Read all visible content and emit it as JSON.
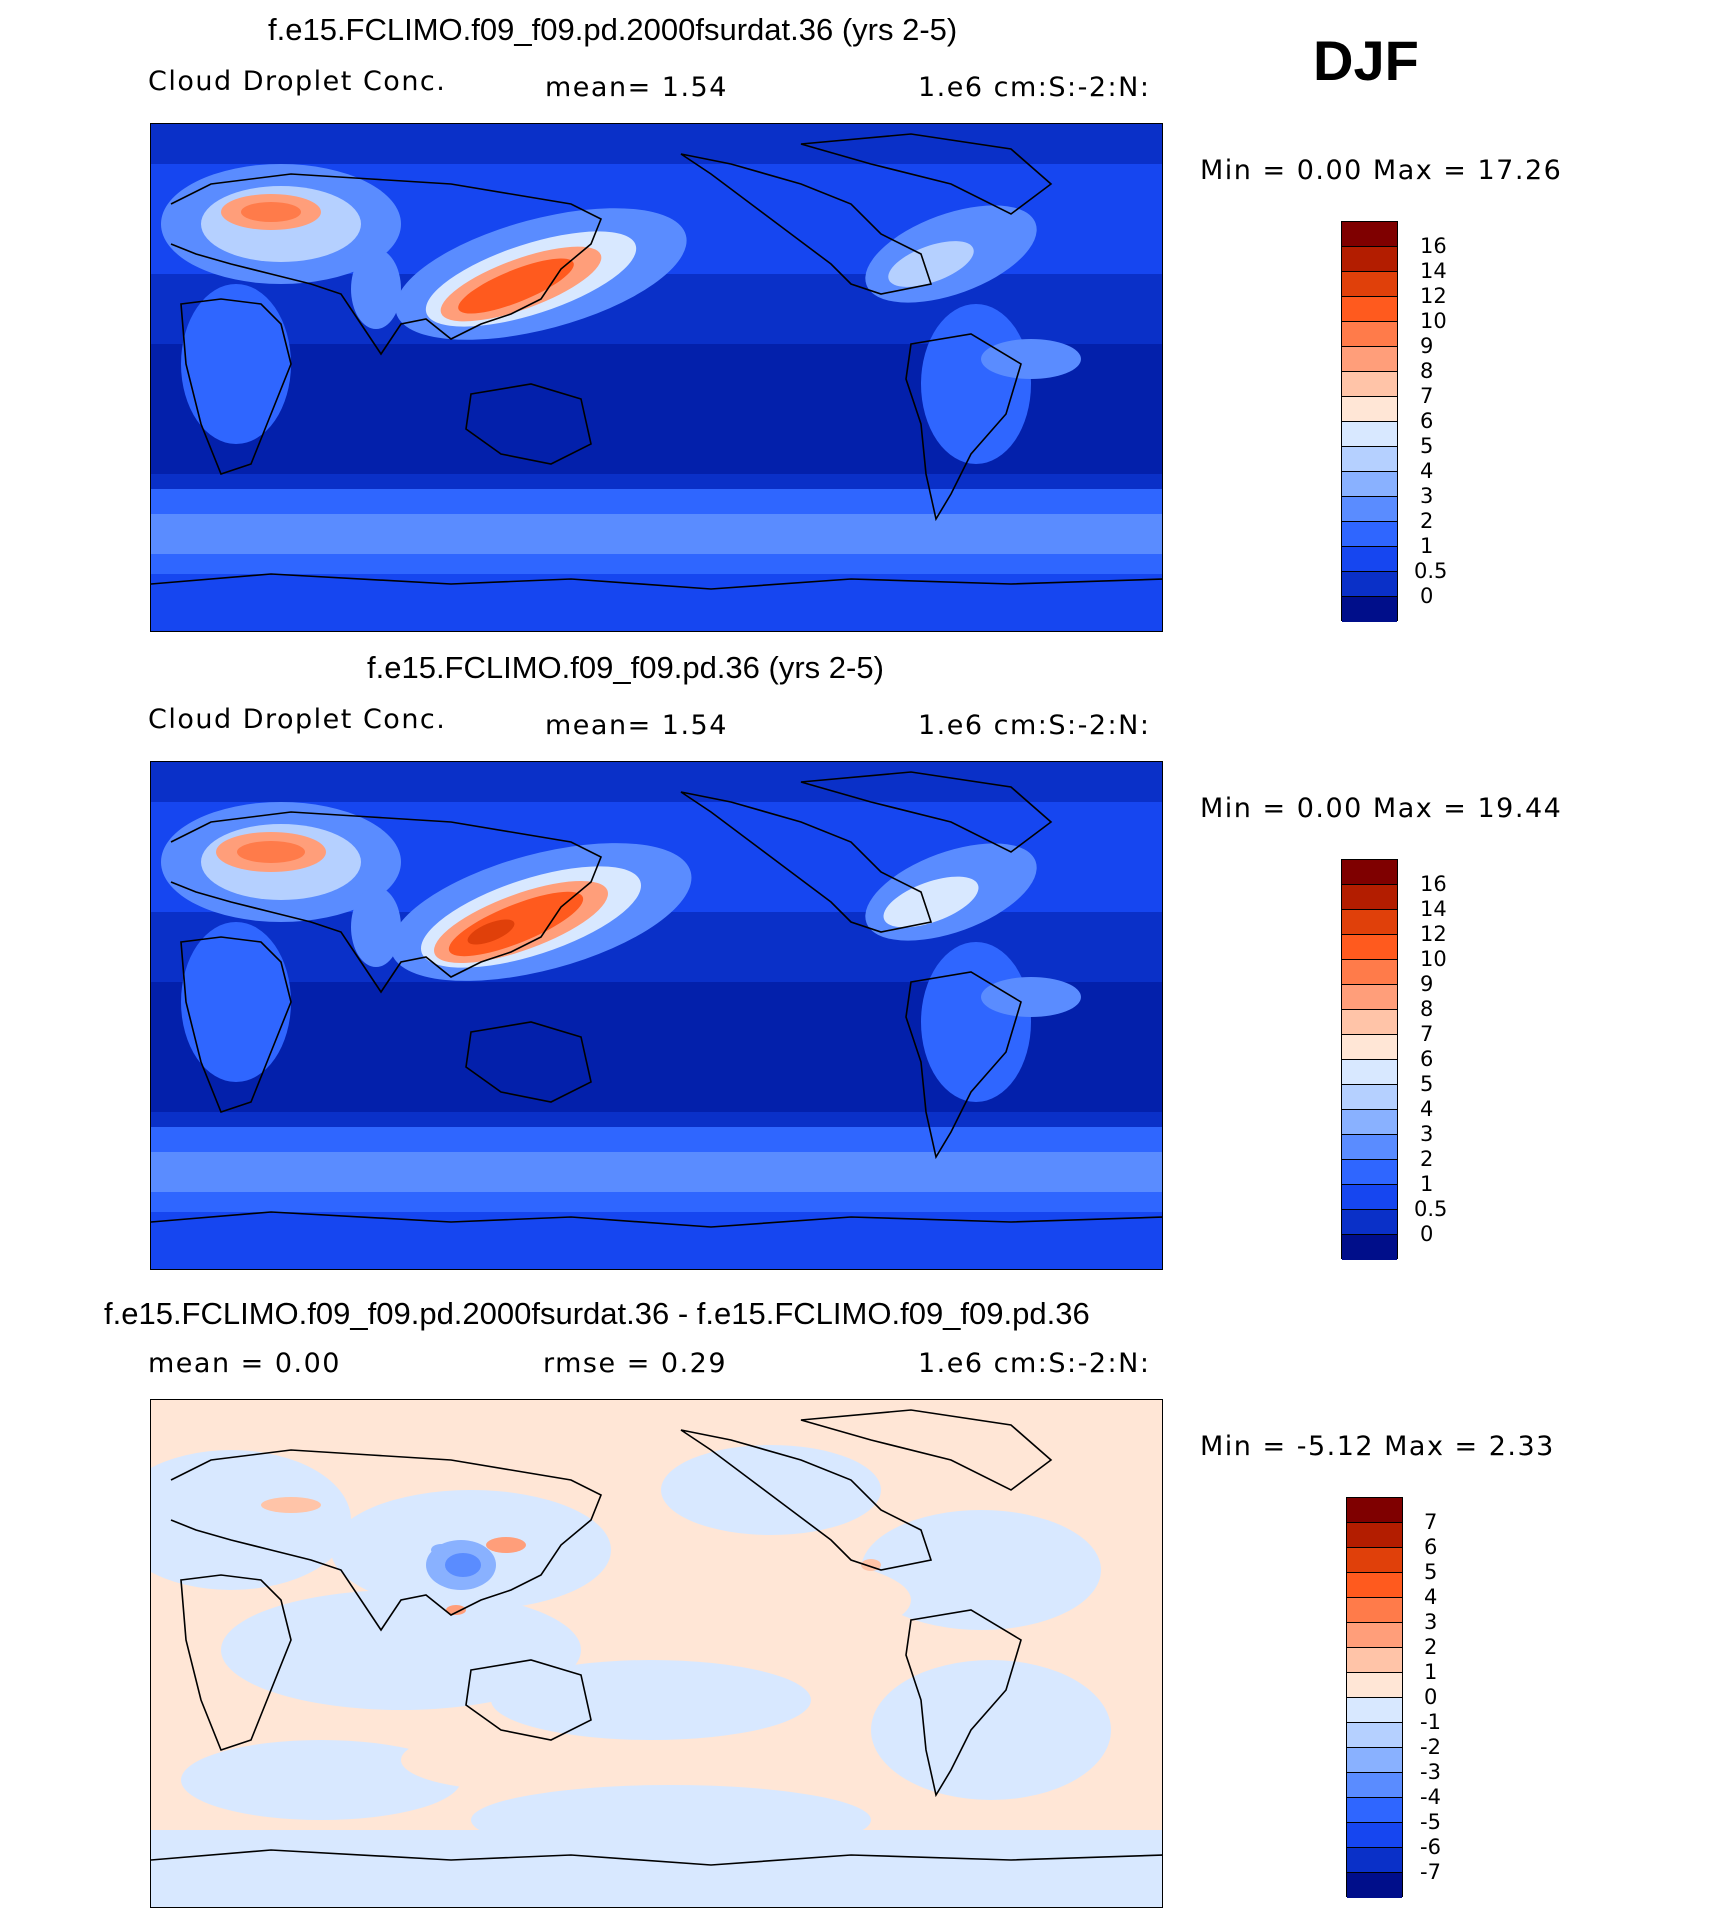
{
  "season_label": "DJF",
  "panels": [
    {
      "title": "f.e15.FCLIMO.f09_f09.pd.2000fsurdat.36 (yrs 2-5)",
      "variable": "Cloud Droplet Conc.",
      "stat1": "mean=    1.54",
      "units": "1.e6 cm:S:-2:N:",
      "minmax": "Min =     0.00 Max =   17.26",
      "colorbar": {
        "labels": [
          "16",
          "14",
          "12",
          "10",
          "9",
          "8",
          "7",
          "6",
          "5",
          "4",
          "3",
          "2",
          "1",
          "0.5",
          "0"
        ],
        "colors": [
          "#7f0000",
          "#b31d00",
          "#e0400a",
          "#ff5a1e",
          "#ff7b4a",
          "#ff9e7a",
          "#ffc4a8",
          "#ffe6d6",
          "#d8e8ff",
          "#b5d0ff",
          "#89b1ff",
          "#5a8cff",
          "#2f66ff",
          "#1646f0",
          "#0a30c8",
          "#000e8a"
        ]
      }
    },
    {
      "title": "f.e15.FCLIMO.f09_f09.pd.36 (yrs 2-5)",
      "variable": "Cloud Droplet Conc.",
      "stat1": "mean=    1.54",
      "units": "1.e6 cm:S:-2:N:",
      "minmax": "Min =     0.00 Max =   19.44",
      "colorbar": {
        "labels": [
          "16",
          "14",
          "12",
          "10",
          "9",
          "8",
          "7",
          "6",
          "5",
          "4",
          "3",
          "2",
          "1",
          "0.5",
          "0"
        ],
        "colors": [
          "#7f0000",
          "#b31d00",
          "#e0400a",
          "#ff5a1e",
          "#ff7b4a",
          "#ff9e7a",
          "#ffc4a8",
          "#ffe6d6",
          "#d8e8ff",
          "#b5d0ff",
          "#89b1ff",
          "#5a8cff",
          "#2f66ff",
          "#1646f0",
          "#0a30c8",
          "#000e8a"
        ]
      }
    },
    {
      "title": "f.e15.FCLIMO.f09_f09.pd.2000fsurdat.36 - f.e15.FCLIMO.f09_f09.pd.36",
      "stat1": "mean =     0.00",
      "stat2": "rmse =     0.29",
      "units": "1.e6 cm:S:-2:N:",
      "minmax": "Min =   -5.12 Max =     2.33",
      "colorbar": {
        "labels": [
          "7",
          "6",
          "5",
          "4",
          "3",
          "2",
          "1",
          "0",
          "-1",
          "-2",
          "-3",
          "-4",
          "-5",
          "-6",
          "-7"
        ],
        "colors": [
          "#7f0000",
          "#b31d00",
          "#e0400a",
          "#ff5a1e",
          "#ff7b4a",
          "#ff9e7a",
          "#ffc4a8",
          "#ffe6d6",
          "#d8e8ff",
          "#b5d0ff",
          "#89b1ff",
          "#5a8cff",
          "#2f66ff",
          "#1646f0",
          "#0a30c8",
          "#000e8a"
        ]
      }
    }
  ]
}
